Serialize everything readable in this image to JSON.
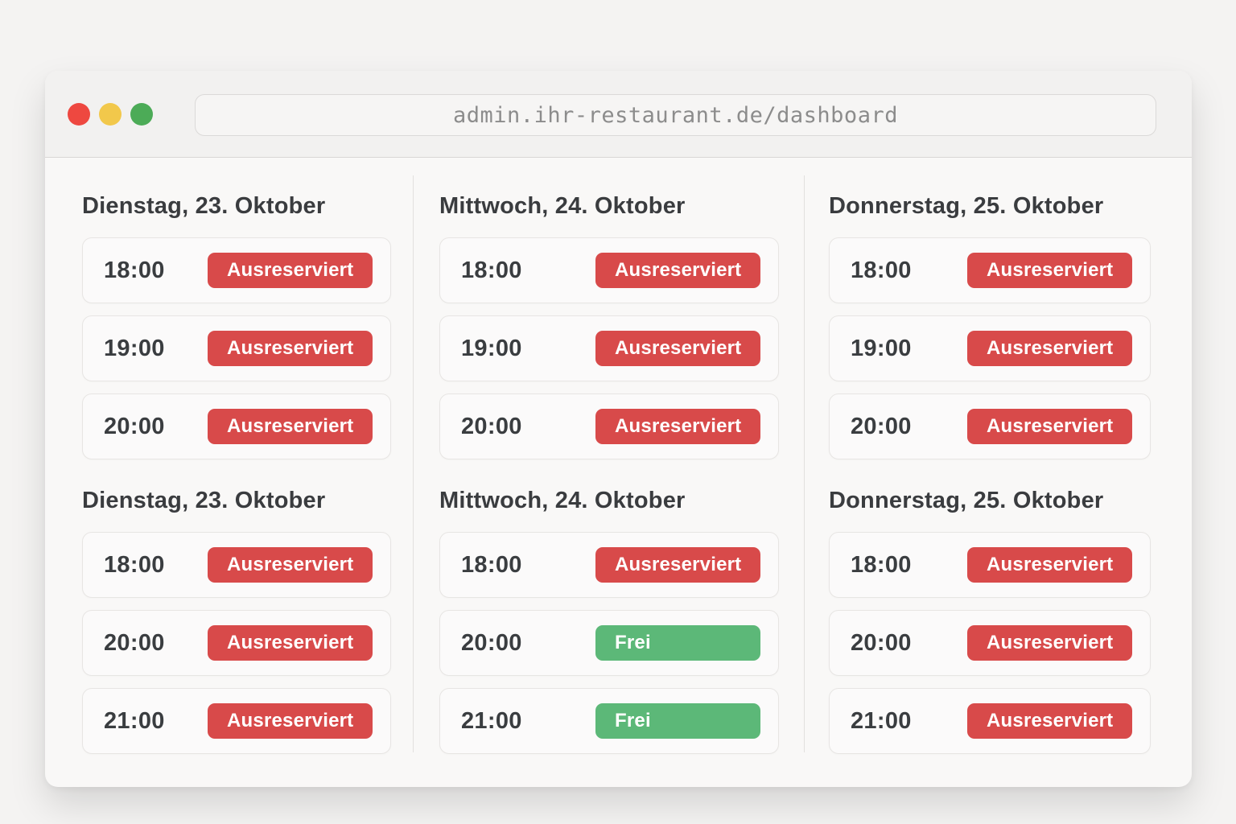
{
  "browser": {
    "url": "admin.ihr-restaurant.de/dashboard",
    "traffic_lights": {
      "close_color": "#ee4840",
      "minimize_color": "#f2c84b",
      "zoom_color": "#4cab57"
    }
  },
  "colors": {
    "badge_booked": "#d84a4a",
    "badge_free": "#5cb878",
    "window_background": "#f9f8f7",
    "chrome_background": "#f2f1f0"
  },
  "columns": [
    {
      "sections": [
        {
          "title": "Dienstag, 23. Oktober",
          "slots": [
            {
              "time": "18:00",
              "status": "Ausreserviert",
              "state": "booked"
            },
            {
              "time": "19:00",
              "status": "Ausreserviert",
              "state": "booked"
            },
            {
              "time": "20:00",
              "status": "Ausreserviert",
              "state": "booked"
            }
          ]
        },
        {
          "title": "Dienstag, 23. Oktober",
          "slots": [
            {
              "time": "18:00",
              "status": "Ausreserviert",
              "state": "booked"
            },
            {
              "time": "20:00",
              "status": "Ausreserviert",
              "state": "booked"
            },
            {
              "time": "21:00",
              "status": "Ausreserviert",
              "state": "booked"
            }
          ]
        }
      ]
    },
    {
      "sections": [
        {
          "title": "Mittwoch, 24. Oktober",
          "slots": [
            {
              "time": "18:00",
              "status": "Ausreserviert",
              "state": "booked"
            },
            {
              "time": "19:00",
              "status": "Ausreserviert",
              "state": "booked"
            },
            {
              "time": "20:00",
              "status": "Ausreserviert",
              "state": "booked"
            }
          ]
        },
        {
          "title": "Mittwoch, 24. Oktober",
          "slots": [
            {
              "time": "18:00",
              "status": "Ausreserviert",
              "state": "booked"
            },
            {
              "time": "20:00",
              "status": "Frei",
              "state": "frei"
            },
            {
              "time": "21:00",
              "status": "Frei",
              "state": "frei"
            }
          ]
        }
      ]
    },
    {
      "sections": [
        {
          "title": "Donnerstag, 25. Oktober",
          "slots": [
            {
              "time": "18:00",
              "status": "Ausreserviert",
              "state": "booked"
            },
            {
              "time": "19:00",
              "status": "Ausreserviert",
              "state": "booked"
            },
            {
              "time": "20:00",
              "status": "Ausreserviert",
              "state": "booked"
            }
          ]
        },
        {
          "title": "Donnerstag, 25. Oktober",
          "slots": [
            {
              "time": "18:00",
              "status": "Ausreserviert",
              "state": "booked"
            },
            {
              "time": "20:00",
              "status": "Ausreserviert",
              "state": "booked"
            },
            {
              "time": "21:00",
              "status": "Ausreserviert",
              "state": "booked"
            }
          ]
        }
      ]
    }
  ]
}
